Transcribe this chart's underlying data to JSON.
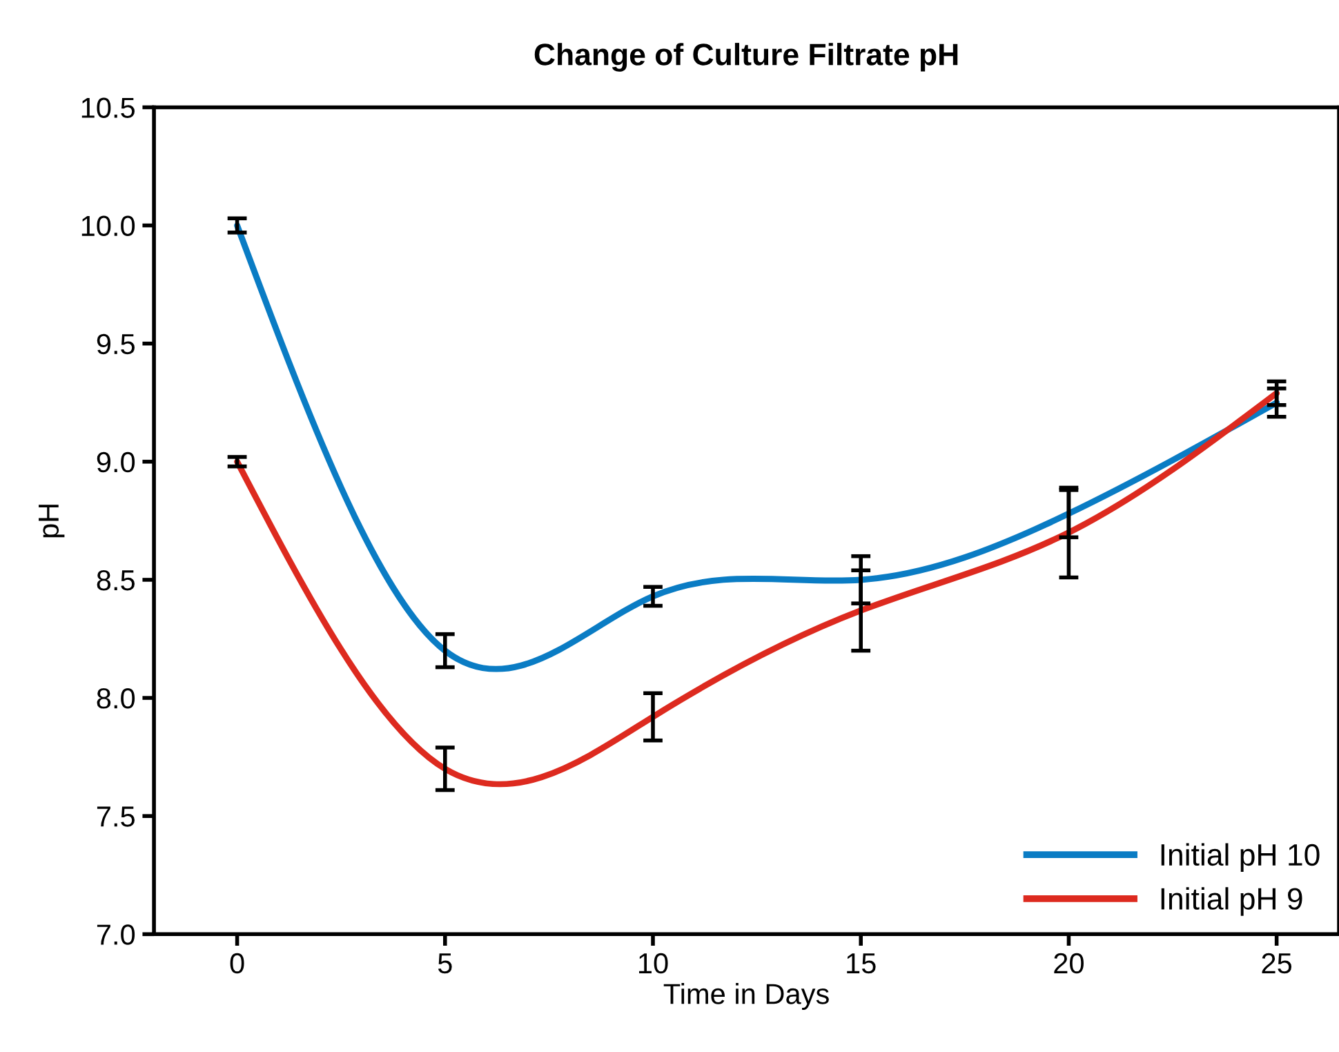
{
  "chart_data": {
    "type": "line",
    "title": "Change of Culture Filtrate pH",
    "xlabel": "Time in Days",
    "ylabel": "pH",
    "x": [
      0,
      5,
      10,
      15,
      20,
      25
    ],
    "series": [
      {
        "name": "Initial pH 10",
        "color": "#0a7cc4",
        "values": [
          10.0,
          8.2,
          8.43,
          8.5,
          8.78,
          9.25
        ],
        "errors": [
          0.03,
          0.07,
          0.04,
          0.1,
          0.1,
          0.06
        ]
      },
      {
        "name": "Initial pH 9",
        "color": "#dd2a1f",
        "values": [
          9.0,
          7.7,
          7.92,
          8.37,
          8.7,
          9.29
        ],
        "errors": [
          0.02,
          0.09,
          0.1,
          0.17,
          0.19,
          0.05
        ]
      }
    ],
    "xlim": [
      -2,
      26.5
    ],
    "xticks": [
      0,
      5,
      10,
      15,
      20,
      25
    ],
    "ylim": [
      7.0,
      10.5
    ],
    "yticks": [
      {
        "value": 7.0,
        "label": "7.0"
      },
      {
        "value": 7.5,
        "label": "7.5"
      },
      {
        "value": 8.0,
        "label": "8.0"
      },
      {
        "value": 8.5,
        "label": "8.5"
      },
      {
        "value": 9.0,
        "label": "9.0"
      },
      {
        "value": 9.5,
        "label": "9.5"
      },
      {
        "value": 10.0,
        "label": "10.0"
      },
      {
        "value": 10.5,
        "label": "10.5"
      }
    ],
    "grid": false,
    "legend": "bottom right",
    "marker": "none",
    "line_style": "solid"
  }
}
